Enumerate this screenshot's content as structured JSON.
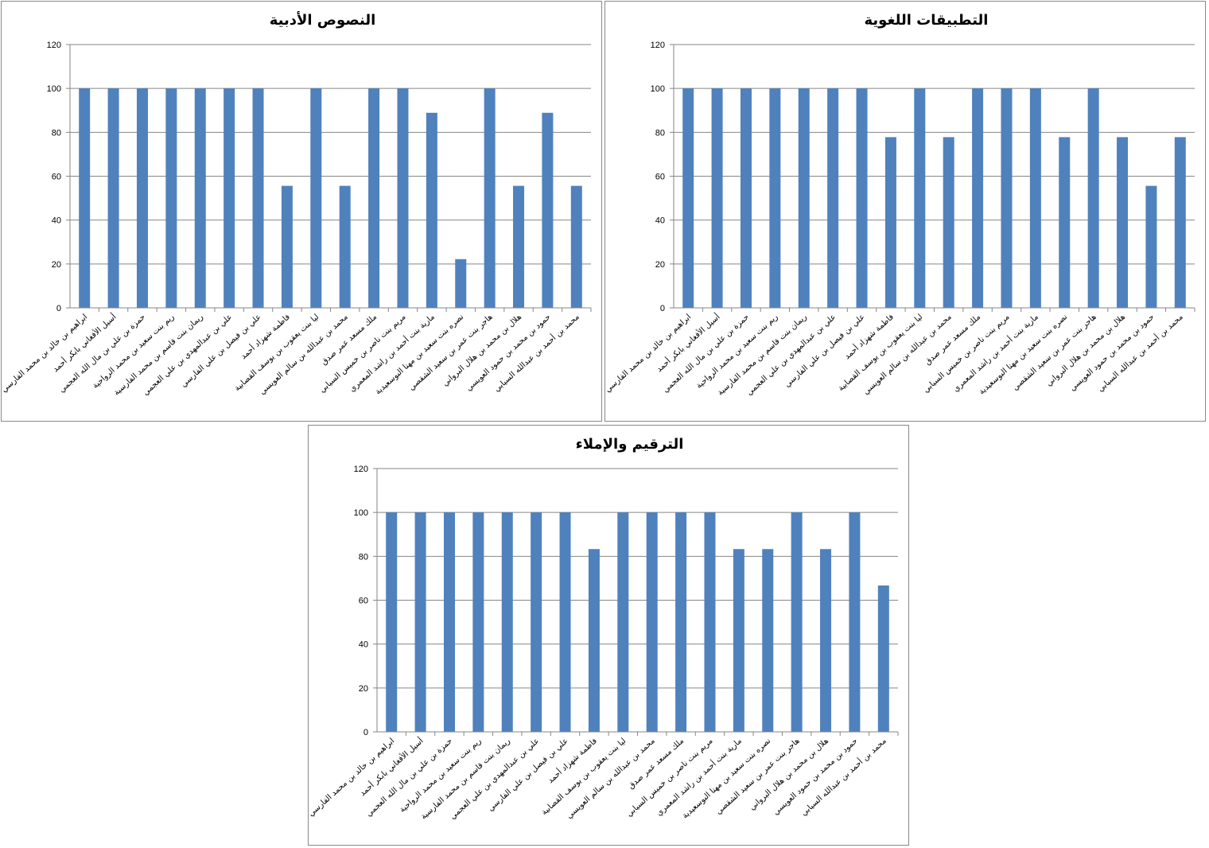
{
  "chart_data": [
    {
      "type": "bar",
      "title": "النصوص الأدبية",
      "xlabel": "",
      "ylabel": "",
      "ylim": [
        0,
        120
      ],
      "yticks": [
        0,
        20,
        40,
        60,
        80,
        100,
        120
      ],
      "grid": true,
      "color": "#4f81bd",
      "categories": [
        "ابراهيم بن خالد بن محمد الفارسي",
        "أسيل الأفغاني بابكر أحمد",
        "حمزة بن علي بن مال الله العجمي",
        "ريم بنت سعيد بن محمد الرواحية",
        "ريمان بنت قاسم بن محمد الفارسية",
        "علي بن عبدالمهدي بن علي العجمي",
        "علي بن فيصل بن علي الفارسي",
        "فاطمة شهزاد أحمد",
        "ليا بنت يعقوب بن يوسف القصابية",
        "محمد بن عبدالله بن سالم العويسي",
        "ملك مسعد عمر صدق",
        "مريم بنت ناصر بن خميس السيابي",
        "مارية بنت أحمد بن راشد المعمري",
        "نصره بنت سعيد بن مهنا البوسعيدية",
        "هاجر بنت عمر بن سعيد الشقصي",
        "هلال بن محمد بن هلال البرواني",
        "حمود بن محمد بن حمود العويسي",
        "محمد بن أحمد بن عبدالله السيابي"
      ],
      "values": [
        100,
        100,
        100,
        100,
        100,
        100,
        100,
        55.6,
        100,
        55.6,
        100,
        100,
        88.9,
        22.2,
        100,
        55.6,
        88.9,
        55.6
      ]
    },
    {
      "type": "bar",
      "title": "التطبيقات اللغوية",
      "xlabel": "",
      "ylabel": "",
      "ylim": [
        0,
        120
      ],
      "yticks": [
        0,
        20,
        40,
        60,
        80,
        100,
        120
      ],
      "grid": true,
      "color": "#4f81bd",
      "categories": [
        "ابراهيم بن خالد بن محمد الفارسي",
        "أسيل الأفغاني بابكر أحمد",
        "حمزة بن علي بن مال الله العجمي",
        "ريم بنت سعيد بن محمد الرواحية",
        "ريمان بنت قاسم بن محمد الفارسية",
        "علي بن عبدالمهدي بن علي العجمي",
        "علي بن فيصل بن علي الفارسي",
        "فاطمة شهزاد أحمد",
        "ليا بنت يعقوب بن يوسف القصابية",
        "محمد بن عبدالله بن سالم العويسي",
        "ملك مسعد عمر صدق",
        "مريم بنت ناصر بن خميس السيابي",
        "مارية بنت أحمد بن راشد المعمري",
        "نصره بنت سعيد بن مهنا البوسعيدية",
        "هاجر بنت عمر بن سعيد الشقصي",
        "هلال بن محمد بن هلال البرواني",
        "حمود بن محمد بن حمود العويسي",
        "محمد بن أحمد بن عبدالله السيابي"
      ],
      "values": [
        100,
        100,
        100,
        100,
        100,
        100,
        100,
        77.8,
        100,
        77.8,
        100,
        100,
        100,
        77.8,
        100,
        77.8,
        55.6,
        77.8
      ]
    },
    {
      "type": "bar",
      "title": "الترقيم والإملاء",
      "xlabel": "",
      "ylabel": "",
      "ylim": [
        0,
        120
      ],
      "yticks": [
        0,
        20,
        40,
        60,
        80,
        100,
        120
      ],
      "grid": true,
      "color": "#4f81bd",
      "categories": [
        "ابراهيم بن خالد بن محمد الفارسي",
        "أسيل الأفغاني بابكر أحمد",
        "حمزة بن علي بن مال الله العجمي",
        "ريم بنت سعيد بن محمد الرواحية",
        "ريمان بنت قاسم بن محمد الفارسية",
        "علي بن عبدالمهدي بن علي العجمي",
        "علي بن فيصل بن علي الفارسي",
        "فاطمة شهزاد أحمد",
        "ليا بنت يعقوب بن يوسف القصابية",
        "محمد بن عبدالله بن سالم العويسي",
        "ملك مسعد عمر صدق",
        "مريم بنت ناصر بن خميس السيابي",
        "مارية بنت أحمد بن راشد المعمري",
        "نصره بنت سعيد بن مهنا البوسعيدية",
        "هاجر بنت عمر بن سعيد الشقصي",
        "هلال بن محمد بن هلال البرواني",
        "حمود بن محمد بن حمود العويسي",
        "محمد بن أحمد بن عبدالله السيابي"
      ],
      "values": [
        100,
        100,
        100,
        100,
        100,
        100,
        100,
        83.3,
        100,
        100,
        100,
        100,
        83.3,
        83.3,
        100,
        83.3,
        100,
        66.7
      ]
    }
  ]
}
